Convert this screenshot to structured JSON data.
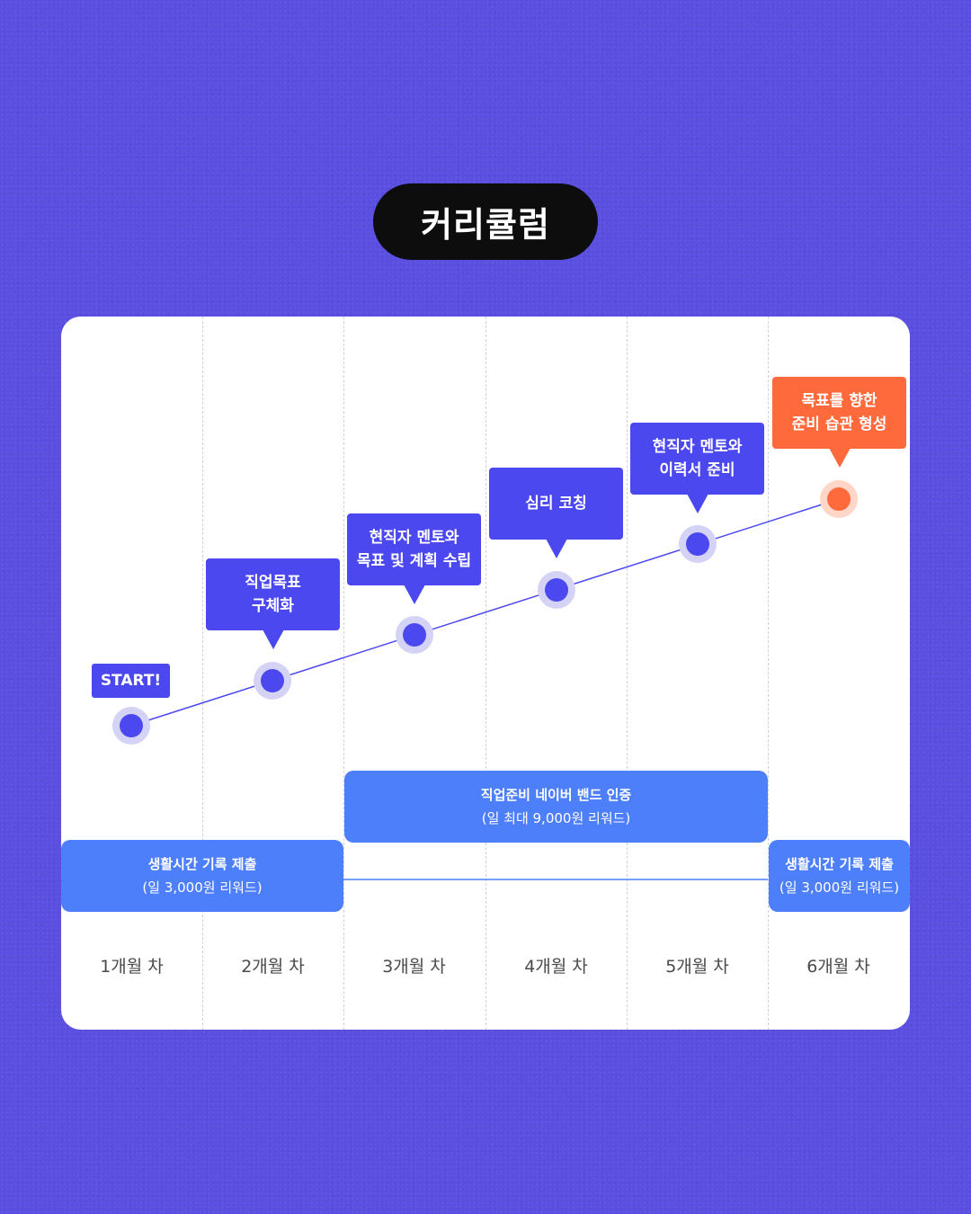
{
  "title": "커리큘럼",
  "start_label": "START!",
  "months": [
    "1개월 차",
    "2개월 차",
    "3개월 차",
    "4개월 차",
    "5개월 차",
    "6개월 차"
  ],
  "milestones": [
    {
      "lines": [
        "직업목표",
        "구체화"
      ]
    },
    {
      "lines": [
        "현직자 멘토와",
        "목표 및 계획 수립"
      ]
    },
    {
      "lines": [
        "심리 코칭"
      ]
    },
    {
      "lines": [
        "현직자 멘토와",
        "이력서 준비"
      ]
    },
    {
      "lines": [
        "목표를 향한",
        "준비 습관 형성"
      ]
    }
  ],
  "bars": {
    "naver_band": {
      "line1": "직업준비 네이버 밴드 인증",
      "line2": "(일 최대 9,000원 리워드)"
    },
    "life_time_left": {
      "line1": "생활시간 기록 제출",
      "line2": "(일 3,000원 리워드)"
    },
    "life_time_right": {
      "line1": "생활시간 기록 제출",
      "line2": "(일 3,000원 리워드)"
    }
  },
  "colors": {
    "background": "#5a4fe0",
    "point": "#4b48f0",
    "point_halo": "#d4d3f6",
    "final_point": "#ff6a3d",
    "final_halo": "#ffd6c8",
    "bar": "#4e7ffa",
    "title_pill": "#0d0d0d"
  }
}
